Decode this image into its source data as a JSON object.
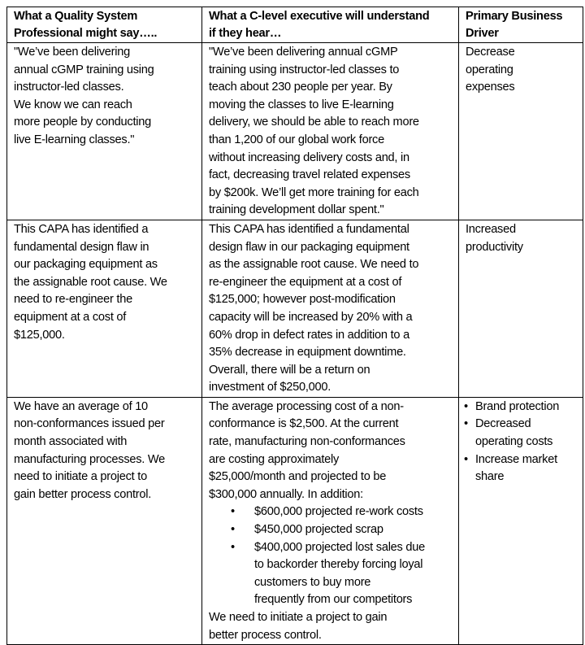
{
  "headers": [
    [
      "What a Quality System",
      "Professional might say….."
    ],
    [
      "What a C-level executive will understand",
      "if they hear…"
    ],
    [
      "Primary Business",
      "Driver"
    ]
  ],
  "rows": [
    {
      "quality": [
        "\"We’ve been delivering",
        "annual cGMP training using",
        "instructor-led classes.",
        "We know we can reach",
        "more people by conducting",
        "live E-learning classes.\""
      ],
      "executive": [
        "\"We’ve been delivering annual cGMP",
        "training using instructor-led classes to",
        "teach about 230 people per year. By",
        "moving the classes to live E-learning",
        "delivery, we should be able to reach more",
        "than 1,200 of our global work force",
        "without increasing delivery costs and, in",
        "fact, decreasing travel related expenses",
        "by $200k. We’ll get more training for each",
        "training development dollar spent.\""
      ],
      "driver": [
        "Decrease",
        "operating",
        "expenses"
      ]
    },
    {
      "quality": [
        "This CAPA has identified a",
        "fundamental design flaw in",
        "our packaging equipment as",
        "the assignable root cause.  We",
        "need to re-engineer the",
        "equipment at a cost of",
        "$125,000."
      ],
      "executive": [
        "This CAPA has identified a fundamental",
        "design flaw in our packaging equipment",
        "as the assignable root cause.  We need to",
        "re-engineer the equipment at a cost of",
        "$125,000; however post-modification",
        "capacity will be increased by 20% with a",
        "60% drop in defect rates in addition to a",
        "35% decrease in equipment downtime.",
        "Overall, there will be a return on",
        "investment of $250,000."
      ],
      "driver": [
        "Increased",
        "productivity"
      ]
    },
    {
      "quality": [
        "We have an average of 10",
        "non-conformances issued per",
        "month associated with",
        "manufacturing processes.  We",
        "need to initiate a project to",
        "gain better process control."
      ],
      "executive_intro": [
        "The average processing cost of a non-",
        "conformance is $2,500.  At the current",
        "rate, manufacturing non-conformances",
        "are costing approximately",
        "$25,000/month and projected to be",
        "$300,000 annually.    In addition:"
      ],
      "executive_bullets": [
        [
          "$600,000 projected re-work costs"
        ],
        [
          "$450,000 projected scrap"
        ],
        [
          "$400,000 projected lost sales due",
          "to backorder thereby forcing loyal",
          "customers to buy more",
          "frequently from our competitors"
        ]
      ],
      "executive_outro": [
        "We need to initiate a project to gain",
        "better process control."
      ],
      "driver_bullets": [
        [
          "Brand protection"
        ],
        [
          "Decreased",
          "operating costs"
        ],
        [
          "Increase market",
          "share"
        ]
      ]
    }
  ]
}
